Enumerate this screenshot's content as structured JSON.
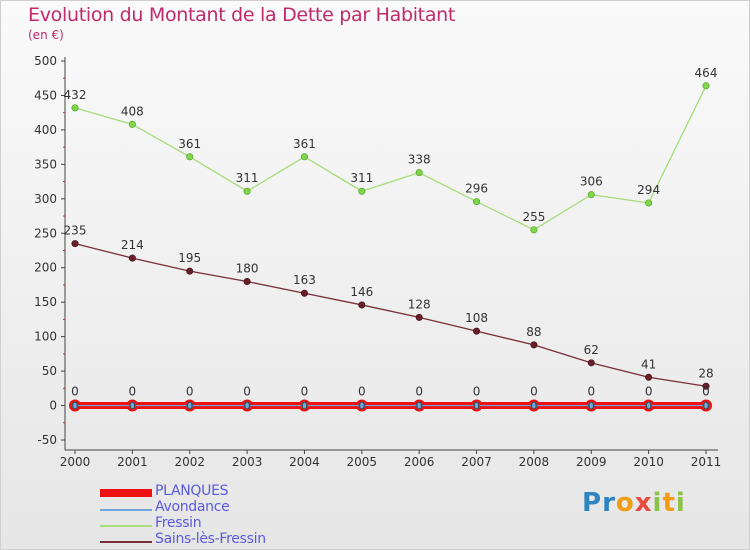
{
  "chart_data": {
    "type": "line",
    "title": "Evolution du Montant de la Dette par Habitant",
    "subtitle": "(en €)",
    "ylim": [
      -50,
      500
    ],
    "yticks": [
      -50,
      0,
      50,
      100,
      150,
      200,
      250,
      300,
      350,
      400,
      450,
      500
    ],
    "categories": [
      "2000",
      "2001",
      "2002",
      "2003",
      "2004",
      "2005",
      "2006",
      "2007",
      "2008",
      "2009",
      "2010",
      "2011"
    ],
    "grid": false,
    "legend_position": "bottom-left",
    "series": [
      {
        "name": "PLANQUES",
        "values": [
          0,
          0,
          0,
          0,
          0,
          0,
          0,
          0,
          0,
          0,
          0,
          0
        ],
        "color": "#ee1111",
        "labels": false
      },
      {
        "name": "Avondance",
        "values": [
          0,
          0,
          0,
          0,
          0,
          0,
          0,
          0,
          0,
          0,
          0,
          0
        ],
        "color": "#6fa8dc",
        "labels": true
      },
      {
        "name": "Fressin",
        "values": [
          432,
          408,
          361,
          311,
          361,
          311,
          338,
          296,
          255,
          306,
          294,
          464
        ],
        "color": "#a6dd7a",
        "labels": true
      },
      {
        "name": "Sains-lès-Fressin",
        "values": [
          235,
          214,
          195,
          180,
          163,
          146,
          128,
          108,
          88,
          62,
          41,
          28
        ],
        "color": "#7a2e3a",
        "labels": true
      }
    ]
  },
  "logo": {
    "text": "Proxiti"
  }
}
